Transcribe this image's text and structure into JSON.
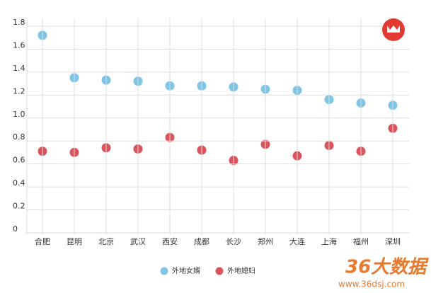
{
  "chart_data": {
    "type": "dot",
    "categories": [
      "合肥",
      "昆明",
      "北京",
      "武汉",
      "西安",
      "成都",
      "长沙",
      "郑州",
      "大连",
      "上海",
      "福州",
      "深圳"
    ],
    "series": [
      {
        "name": "外地女婿",
        "color": "#7fc6e6",
        "values": [
          1.69,
          1.32,
          1.3,
          1.29,
          1.25,
          1.25,
          1.24,
          1.22,
          1.21,
          1.13,
          1.1,
          1.08
        ]
      },
      {
        "name": "外地媳妇",
        "color": "#d9545c",
        "values": [
          0.68,
          0.67,
          0.71,
          0.7,
          0.8,
          0.69,
          0.6,
          0.74,
          0.64,
          0.73,
          0.68,
          0.88
        ]
      }
    ],
    "ylim": [
      0,
      1.8
    ],
    "yticks": [
      0,
      0.2,
      0.4,
      0.6,
      0.8,
      {
        "value": 1,
        "label": "1.0"
      },
      1.2,
      1.4,
      1.6,
      1.8
    ],
    "grid": true,
    "legend": "bottom"
  },
  "watermark": {
    "brand": "36大数据",
    "url": "www.36dsj.com"
  }
}
